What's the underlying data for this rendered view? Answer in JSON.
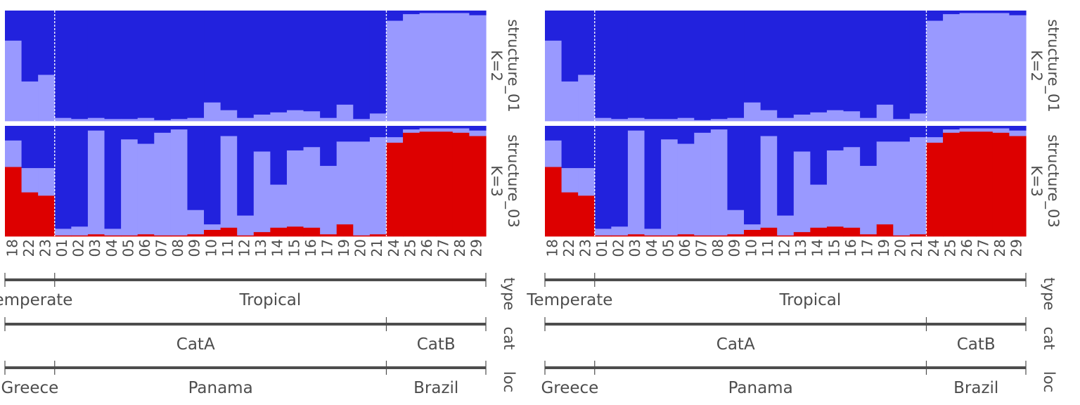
{
  "chart_data": [
    {
      "type": "bar",
      "stacked": true,
      "title": "",
      "panels": [
        {
          "label_line1": "structure_01",
          "label_line2": "K=2",
          "series": [
            {
              "name": "",
              "color": "#9999ff",
              "values": [
                0.73,
                0.36,
                0.42,
                0.03,
                0.02,
                0.03,
                0.02,
                0.02,
                0.03,
                0.01,
                0.02,
                0.03,
                0.17,
                0.1,
                0.03,
                0.06,
                0.08,
                0.1,
                0.09,
                0.03,
                0.15,
                0.02,
                0.07,
                0.91,
                0.97,
                0.98,
                0.98,
                0.98,
                0.96
              ]
            },
            {
              "name": "",
              "color": "#2222dd",
              "values": [
                0.27,
                0.64,
                0.58,
                0.97,
                0.98,
                0.97,
                0.98,
                0.98,
                0.97,
                0.99,
                0.98,
                0.97,
                0.83,
                0.9,
                0.97,
                0.94,
                0.92,
                0.9,
                0.91,
                0.97,
                0.85,
                0.98,
                0.93,
                0.09,
                0.03,
                0.02,
                0.02,
                0.02,
                0.04
              ]
            }
          ]
        },
        {
          "label_line1": "structure_03",
          "label_line2": "K=3",
          "series": [
            {
              "name": "",
              "color": "#dd0000",
              "values": [
                0.63,
                0.4,
                0.37,
                0.01,
                0.01,
                0.02,
                0.01,
                0.01,
                0.02,
                0.01,
                0.01,
                0.02,
                0.06,
                0.08,
                0.01,
                0.04,
                0.08,
                0.09,
                0.08,
                0.02,
                0.11,
                0.01,
                0.02,
                0.85,
                0.94,
                0.95,
                0.95,
                0.94,
                0.91
              ]
            },
            {
              "name": "",
              "color": "#9999ff",
              "values": [
                0.24,
                0.22,
                0.25,
                0.06,
                0.08,
                0.94,
                0.06,
                0.87,
                0.82,
                0.93,
                0.96,
                0.22,
                0.05,
                0.83,
                0.18,
                0.73,
                0.39,
                0.69,
                0.73,
                0.62,
                0.75,
                0.85,
                0.88,
                0.05,
                0.03,
                0.03,
                0.03,
                0.04,
                0.05
              ]
            },
            {
              "name": "",
              "color": "#2222dd",
              "values": [
                0.13,
                0.38,
                0.38,
                0.93,
                0.91,
                0.04,
                0.93,
                0.12,
                0.16,
                0.06,
                0.03,
                0.76,
                0.89,
                0.09,
                0.81,
                0.23,
                0.53,
                0.22,
                0.19,
                0.36,
                0.14,
                0.14,
                0.1,
                0.1,
                0.03,
                0.02,
                0.02,
                0.02,
                0.04
              ]
            }
          ]
        }
      ],
      "charts": [
        {
          "name": "left",
          "group_breaks": [
            3,
            23
          ]
        },
        {
          "name": "right",
          "group_breaks": [
            3,
            23
          ]
        }
      ],
      "x_tick_labels": [
        "18",
        "22",
        "23",
        "01",
        "02",
        "03",
        "04",
        "05",
        "06",
        "07",
        "08",
        "09",
        "10",
        "11",
        "12",
        "13",
        "14",
        "15",
        "16",
        "17",
        "19",
        "20",
        "21",
        "24",
        "25",
        "26",
        "27",
        "28",
        "29"
      ],
      "tracks": [
        {
          "label": "type",
          "segments": [
            {
              "text": "Temperate",
              "start": 0,
              "end": 3
            },
            {
              "text": "Tropical",
              "start": 3,
              "end": 29
            }
          ]
        },
        {
          "label": "cat",
          "segments": [
            {
              "text": "CatA",
              "start": 0,
              "end": 23
            },
            {
              "text": "CatB",
              "start": 23,
              "end": 29
            }
          ]
        },
        {
          "label": "loc",
          "segments": [
            {
              "text": "Greece",
              "start": 0,
              "end": 3
            },
            {
              "text": "Panama",
              "start": 3,
              "end": 23
            },
            {
              "text": "Brazil",
              "start": 23,
              "end": 29
            }
          ]
        }
      ],
      "ylim": [
        0,
        1
      ],
      "grid": false,
      "legend": "none"
    }
  ]
}
